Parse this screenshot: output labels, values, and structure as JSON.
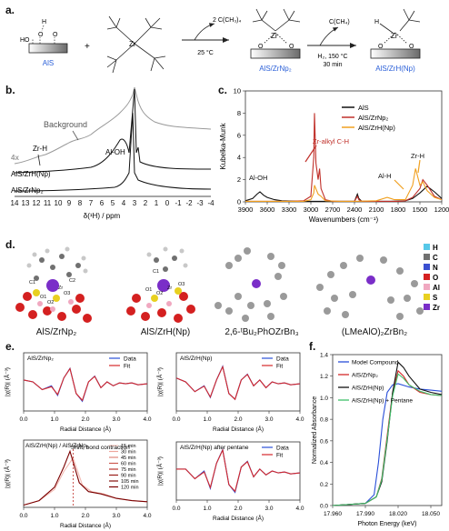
{
  "panel_labels": {
    "a": "a.",
    "b": "b.",
    "c": "c.",
    "d": "d.",
    "e": "e.",
    "f": "f."
  },
  "scheme": {
    "ais_label": "AlS",
    "plus": "+",
    "arrow1_reagent": "2 C(CH₃)₄",
    "arrow1_cond": "25 °C",
    "prod1_label": "AlS/ZrNp₂",
    "arrow2_reagent": "C(CH₄)",
    "arrow2_cond1": "H₂, 150 °C",
    "arrow2_cond2": "30 min",
    "prod2_label": "AlS/ZrH(Np)",
    "zr": "Zr",
    "h": "H",
    "o": "O",
    "ho": "HO",
    "minus": "–",
    "plus_charge": "+"
  },
  "nmr": {
    "xlabel": "δ(¹H) / ppm",
    "ticks": [
      "14",
      "13",
      "12",
      "11",
      "10",
      "9",
      "8",
      "7",
      "6",
      "5",
      "4",
      "3",
      "2",
      "1",
      "0",
      "-1",
      "-2",
      "-3",
      "-4"
    ],
    "scale_label": "4x",
    "ann_background": "Background",
    "ann_zrh": "Zr-H",
    "ann_aloh": "Al-OH",
    "trace1": "AlS/ZrH(Np)",
    "trace2": "AlS/ZrNp₂"
  },
  "chart_data": [
    {
      "type": "line",
      "xlabel": "Wavenumbers (cm⁻¹)",
      "ylabel": "Kubelka-Munk",
      "xlim": [
        3900,
        1200
      ],
      "ylim": [
        0,
        10
      ],
      "xticks": [
        "3900",
        "3600",
        "3300",
        "3000",
        "2700",
        "2400",
        "2100",
        "1800",
        "1500",
        "1200"
      ],
      "yticks": [
        "0",
        "2",
        "4",
        "6",
        "8",
        "10"
      ],
      "legend": [
        "AlS",
        "AlS/ZrNp₂",
        "AlS/ZrH(Np)"
      ],
      "annotations": [
        "Zr-alkyl C-H",
        "Al-OH",
        "Al-H",
        "Zr-H"
      ],
      "series": [
        {
          "name": "AlS",
          "color": "#111111",
          "x": [
            3900,
            3800,
            3740,
            3700,
            3650,
            3600,
            3500,
            3400,
            3300,
            3100,
            3000,
            2900,
            2800,
            2600,
            2400,
            2360,
            2340,
            2300,
            2100,
            1900,
            1700,
            1600,
            1500,
            1400,
            1300,
            1200
          ],
          "y": [
            0.1,
            0.3,
            0.7,
            0.9,
            0.6,
            0.4,
            0.2,
            0.1,
            0.08,
            0.05,
            0.05,
            0.05,
            0.05,
            0.05,
            0.05,
            0.7,
            0.3,
            0.05,
            0.05,
            0.05,
            0.1,
            0.3,
            0.8,
            1.4,
            0.9,
            0.3
          ]
        },
        {
          "name": "AlS/ZrNp₂",
          "color": "#c0302a",
          "x": [
            3900,
            3700,
            3600,
            3300,
            3100,
            3000,
            2960,
            2950,
            2930,
            2900,
            2880,
            2860,
            2800,
            2700,
            2400,
            2360,
            2340,
            2300,
            2000,
            1800,
            1700,
            1600,
            1500,
            1460,
            1400,
            1300,
            1200
          ],
          "y": [
            0.05,
            0.05,
            0.05,
            0.05,
            0.1,
            0.5,
            4.0,
            8.0,
            3.5,
            2.0,
            3.0,
            1.2,
            0.2,
            0.05,
            0.05,
            0.5,
            0.2,
            0.05,
            0.05,
            0.05,
            0.1,
            0.4,
            1.2,
            2.0,
            1.5,
            0.5,
            0.2
          ]
        },
        {
          "name": "AlS/ZrH(Np)",
          "color": "#f0a020",
          "x": [
            3900,
            3700,
            3600,
            3300,
            3100,
            3000,
            2960,
            2950,
            2900,
            2860,
            2800,
            2600,
            2400,
            2100,
            1950,
            1900,
            1850,
            1700,
            1600,
            1560,
            1500,
            1460,
            1400,
            1300,
            1200
          ],
          "y": [
            0.05,
            0.05,
            0.05,
            0.05,
            0.05,
            0.2,
            0.8,
            1.5,
            0.7,
            0.5,
            0.1,
            0.05,
            0.05,
            0.1,
            0.4,
            0.3,
            0.2,
            0.2,
            1.5,
            3.0,
            1.5,
            1.8,
            1.0,
            0.4,
            0.2
          ]
        }
      ]
    },
    {
      "type": "line",
      "title": "AlS/ZrNp₂",
      "xlabel": "Radial Distance (Å)",
      "ylabel": "|χ(R)| (Å⁻³)",
      "xlim": [
        0,
        4
      ],
      "xticks": [
        "0.0",
        "1.0",
        "2.0",
        "3.0",
        "4.0"
      ],
      "legend": [
        "Data",
        "Fit"
      ],
      "series": [
        {
          "name": "Data",
          "color": "#2a4fd8",
          "x": [
            0,
            0.3,
            0.6,
            0.9,
            1.1,
            1.3,
            1.5,
            1.7,
            1.9,
            2.1,
            2.3,
            2.5,
            2.7,
            2.9,
            3.1,
            3.3,
            3.5,
            3.7,
            4.0
          ],
          "y": [
            0.2,
            0.1,
            -0.3,
            -0.1,
            -0.6,
            0.3,
            0.8,
            -0.5,
            -0.9,
            0.1,
            0.4,
            -0.2,
            0.1,
            -0.1,
            0.05,
            0.0,
            0.05,
            -0.05,
            0.0
          ]
        },
        {
          "name": "Fit",
          "color": "#d4282a",
          "x": [
            0,
            0.3,
            0.6,
            0.9,
            1.1,
            1.3,
            1.5,
            1.7,
            1.9,
            2.1,
            2.3,
            2.5,
            2.7,
            2.9,
            3.1,
            3.3,
            3.5,
            3.7,
            4.0
          ],
          "y": [
            0.2,
            0.1,
            -0.3,
            -0.15,
            -0.55,
            0.3,
            0.78,
            -0.5,
            -0.85,
            0.1,
            0.38,
            -0.2,
            0.1,
            -0.1,
            0.05,
            0.0,
            0.05,
            -0.05,
            0.0
          ]
        }
      ]
    },
    {
      "type": "line",
      "title": "AlS/ZrH(Np)",
      "xlabel": "Radial Distance (Å)",
      "ylabel": "|χ(R)| (Å⁻³)",
      "xlim": [
        0,
        4
      ],
      "xticks": [
        "0.0",
        "1.0",
        "2.0",
        "3.0",
        "4.0"
      ],
      "legend": [
        "Data",
        "Fit"
      ],
      "series": [
        {
          "name": "Data",
          "color": "#2a4fd8",
          "x": [
            0,
            0.3,
            0.6,
            0.9,
            1.1,
            1.3,
            1.5,
            1.7,
            1.9,
            2.1,
            2.3,
            2.5,
            2.7,
            2.9,
            3.1,
            3.3,
            3.5,
            3.7,
            4.0
          ],
          "y": [
            0.3,
            0.1,
            -0.4,
            -0.1,
            -0.7,
            0.2,
            0.9,
            -0.5,
            -0.8,
            0.2,
            0.5,
            -0.1,
            0.2,
            -0.2,
            0.1,
            0.0,
            0.05,
            -0.05,
            0.0
          ]
        },
        {
          "name": "Fit",
          "color": "#d4282a",
          "x": [
            0,
            0.3,
            0.6,
            0.9,
            1.1,
            1.3,
            1.5,
            1.7,
            1.9,
            2.1,
            2.3,
            2.5,
            2.7,
            2.9,
            3.1,
            3.3,
            3.5,
            3.7,
            4.0
          ],
          "y": [
            0.3,
            0.1,
            -0.4,
            -0.12,
            -0.68,
            0.2,
            0.88,
            -0.5,
            -0.8,
            0.2,
            0.48,
            -0.1,
            0.2,
            -0.2,
            0.1,
            0.0,
            0.05,
            -0.05,
            0.0
          ]
        }
      ]
    },
    {
      "type": "line",
      "title": "AlS/ZrH(Np) / AlS/ZrNp₂",
      "xlabel": "Radial Distance (Å)",
      "ylabel": "|χ(R)| (Å⁻³)",
      "xlim": [
        0,
        4
      ],
      "xticks": [
        "0.0",
        "1.0",
        "2.0",
        "3.0",
        "4.0"
      ],
      "legend": [
        "15 min",
        "30 min",
        "45 min",
        "60 min",
        "75 min",
        "90 min",
        "105 min",
        "120 min"
      ],
      "annotations": [
        "Shift, bond contraction"
      ],
      "series": [
        {
          "name": "15 min",
          "color": "#f2b8b0",
          "x": [
            0,
            0.5,
            1.0,
            1.3,
            1.6,
            1.9,
            2.2,
            2.6,
            3.0,
            3.5,
            4.0
          ],
          "y": [
            0.1,
            0.3,
            0.8,
            1.6,
            2.2,
            1.0,
            0.7,
            0.6,
            0.4,
            0.3,
            0.25
          ]
        },
        {
          "name": "120 min",
          "color": "#7a0000",
          "x": [
            0,
            0.5,
            1.0,
            1.3,
            1.5,
            1.8,
            2.1,
            2.5,
            3.0,
            3.5,
            4.0
          ],
          "y": [
            0.1,
            0.3,
            0.9,
            1.8,
            2.5,
            1.1,
            0.7,
            0.6,
            0.4,
            0.3,
            0.25
          ]
        }
      ]
    },
    {
      "type": "line",
      "title": "AlS/ZrH(Np) after pentane",
      "xlabel": "Radial Distance (Å)",
      "ylabel": "|χ(R)| (Å⁻³)",
      "xlim": [
        0,
        4
      ],
      "xticks": [
        "0.0",
        "1.0",
        "2.0",
        "3.0",
        "4.0"
      ],
      "legend": [
        "Data",
        "Fit"
      ],
      "series": [
        {
          "name": "Data",
          "color": "#2a4fd8",
          "x": [
            0,
            0.3,
            0.6,
            0.9,
            1.1,
            1.3,
            1.5,
            1.7,
            1.9,
            2.1,
            2.3,
            2.5,
            2.7,
            2.9,
            3.1,
            3.3,
            3.5,
            3.7,
            4.0
          ],
          "y": [
            0.2,
            0.2,
            -0.3,
            0.1,
            -0.8,
            0.5,
            1.2,
            -0.6,
            -1.0,
            0.3,
            0.6,
            -0.2,
            0.2,
            -0.1,
            0.1,
            0.0,
            0.05,
            -0.05,
            0.0
          ]
        },
        {
          "name": "Fit",
          "color": "#d4282a",
          "x": [
            0,
            0.3,
            0.6,
            0.9,
            1.1,
            1.3,
            1.5,
            1.7,
            1.9,
            2.1,
            2.3,
            2.5,
            2.7,
            2.9,
            3.1,
            3.3,
            3.5,
            3.7,
            4.0
          ],
          "y": [
            0.2,
            0.2,
            -0.3,
            0.05,
            -0.75,
            0.5,
            1.18,
            -0.6,
            -0.95,
            0.3,
            0.58,
            -0.2,
            0.2,
            -0.1,
            0.1,
            0.0,
            0.05,
            -0.05,
            0.0
          ]
        }
      ]
    },
    {
      "type": "line",
      "xlabel": "Photon Energy (keV)",
      "ylabel": "Normalized Absorbance",
      "xlim": [
        17.96,
        18.06
      ],
      "ylim": [
        0,
        1.4
      ],
      "xticks": [
        "17.960",
        "17.990",
        "18.020",
        "18.050"
      ],
      "yticks": [
        "0.0",
        "0.2",
        "0.4",
        "0.6",
        "0.8",
        "1.0",
        "1.2",
        "1.4"
      ],
      "legend": [
        "Model Compound",
        "AlS/ZrNp₂",
        "AlS/ZrH(Np)",
        "AlS/ZrH(Np) + Pentane"
      ],
      "series": [
        {
          "name": "Model Compound",
          "color": "#2a4fd8",
          "x": [
            17.96,
            17.99,
            17.998,
            18.002,
            18.006,
            18.01,
            18.015,
            18.02,
            18.03,
            18.04,
            18.05,
            18.06
          ],
          "y": [
            0.0,
            0.02,
            0.1,
            0.4,
            0.8,
            1.05,
            1.12,
            1.13,
            1.1,
            1.08,
            1.07,
            1.06
          ]
        },
        {
          "name": "AlS/ZrNp₂",
          "color": "#d4282a",
          "x": [
            17.96,
            17.99,
            18.0,
            18.005,
            18.01,
            18.015,
            18.02,
            18.025,
            18.03,
            18.04,
            18.05,
            18.06
          ],
          "y": [
            0.0,
            0.02,
            0.08,
            0.25,
            0.65,
            1.05,
            1.25,
            1.2,
            1.12,
            1.05,
            1.03,
            1.02
          ]
        },
        {
          "name": "AlS/ZrH(Np)",
          "color": "#111111",
          "x": [
            17.96,
            17.99,
            18.0,
            18.005,
            18.01,
            18.015,
            18.02,
            18.025,
            18.03,
            18.04,
            18.05,
            18.06
          ],
          "y": [
            0.0,
            0.02,
            0.08,
            0.22,
            0.6,
            1.05,
            1.33,
            1.28,
            1.2,
            1.08,
            1.05,
            1.03
          ]
        },
        {
          "name": "AlS/ZrH(Np) + Pentane",
          "color": "#3fbf6a",
          "x": [
            17.96,
            17.99,
            18.0,
            18.005,
            18.01,
            18.015,
            18.02,
            18.025,
            18.03,
            18.04,
            18.05,
            18.06
          ],
          "y": [
            0.0,
            0.02,
            0.08,
            0.24,
            0.62,
            1.02,
            1.22,
            1.18,
            1.12,
            1.06,
            1.03,
            1.02
          ]
        }
      ]
    }
  ],
  "panel_d": {
    "legend": [
      {
        "label": "H",
        "color": "#57c8e8"
      },
      {
        "label": "C",
        "color": "#707070"
      },
      {
        "label": "N",
        "color": "#3a4fd0"
      },
      {
        "label": "O",
        "color": "#d42020"
      },
      {
        "label": "Al",
        "color": "#f0a8c0"
      },
      {
        "label": "S",
        "color": "#e8d020"
      },
      {
        "label": "Zr",
        "color": "#7a2ec8"
      }
    ],
    "captions": [
      "AlS/ZrNp₂",
      "AlS/ZrH(Np)",
      "2,6-ᵗBu₂PhOZrBn₃",
      "(LMeAlO)₂ZrBn₂"
    ],
    "atom_labels": [
      "C1",
      "C2",
      "Zr",
      "O1",
      "O2",
      "O3",
      "C1",
      "O1",
      "O2",
      "O3",
      "Zr"
    ]
  }
}
